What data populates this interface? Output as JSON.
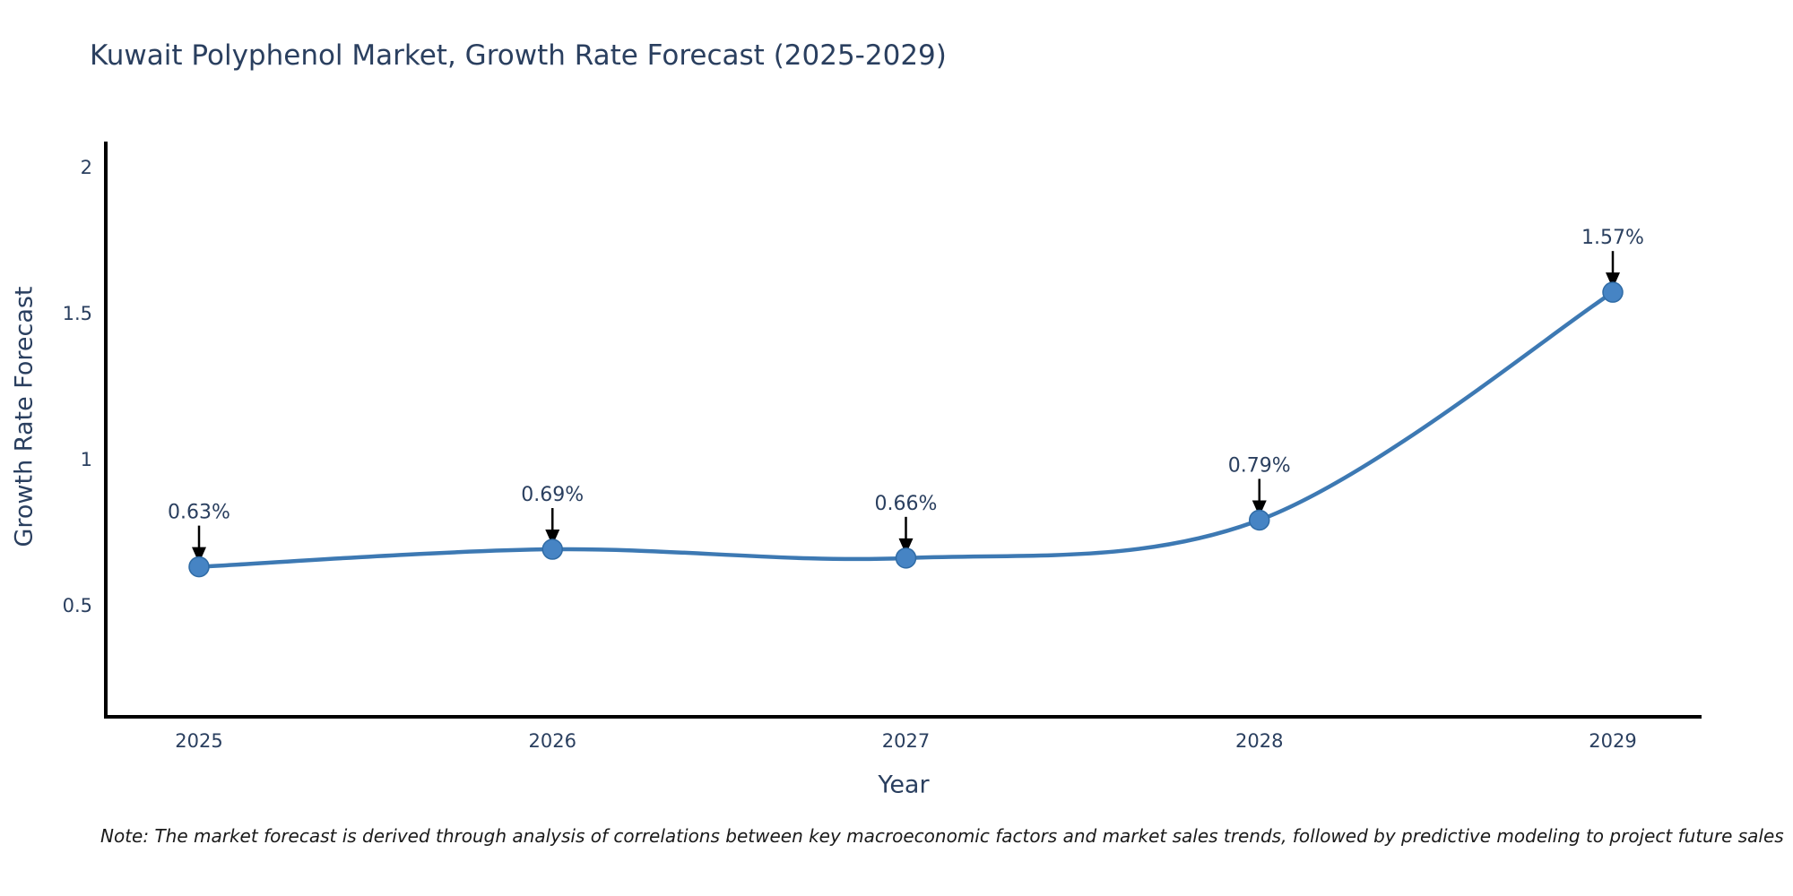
{
  "title": "Kuwait Polyphenol Market, Growth Rate Forecast (2025-2029)",
  "note": "Note: The market forecast is derived through analysis of correlations between key macroeconomic factors and market sales trends, followed by predictive modeling to project future sales",
  "colors": {
    "text": "#2a3f5f",
    "axis": "#000000",
    "line": "#3d79b3",
    "marker": "#4684c4",
    "marker_edge": "#2f6ba5",
    "arrow": "#000000",
    "note_text": "#1a1a1a",
    "background": "#ffffff"
  },
  "chart_data": {
    "type": "line",
    "title": "Kuwait Polyphenol Market, Growth Rate Forecast (2025-2029)",
    "x": [
      2025,
      2026,
      2027,
      2028,
      2029
    ],
    "xticklabels": [
      "2025",
      "2026",
      "2027",
      "2028",
      "2029"
    ],
    "series": [
      {
        "name": "Growth Rate Forecast",
        "values": [
          0.63,
          0.69,
          0.66,
          0.79,
          1.57
        ]
      }
    ],
    "point_labels": [
      "0.63%",
      "0.69%",
      "0.66%",
      "0.79%",
      "1.57%"
    ],
    "xlabel": "Year",
    "ylabel": "Growth Rate Forecast",
    "yticks": [
      0.5,
      1,
      1.5,
      2
    ],
    "yticklabels": [
      "0.5",
      "1",
      "1.5",
      "2"
    ],
    "ylim": [
      0.12,
      2.1
    ],
    "xlim": [
      2024.73,
      2029.25
    ],
    "grid": false,
    "legend_position": "none",
    "line_shape": "spline",
    "annotation_arrows": "down"
  }
}
